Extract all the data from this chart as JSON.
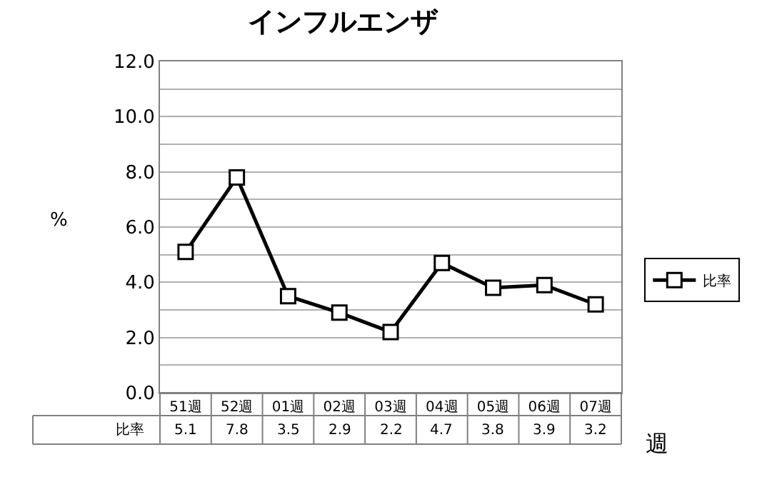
{
  "chart_data": {
    "type": "line",
    "title": "インフルエンザ",
    "ylabel": "%",
    "xlabel": "週",
    "categories": [
      "51週",
      "52週",
      "01週",
      "02週",
      "03週",
      "04週",
      "05週",
      "06週",
      "07週"
    ],
    "series": [
      {
        "name": "比率",
        "color": "#000000",
        "values": [
          5.1,
          7.8,
          3.5,
          2.9,
          2.2,
          4.7,
          3.8,
          3.9,
          3.2
        ]
      }
    ],
    "ylim": [
      0,
      12
    ],
    "yticks": [
      {
        "value": 0,
        "label": "0.0"
      },
      {
        "value": 1,
        "label": null
      },
      {
        "value": 2,
        "label": "2.0"
      },
      {
        "value": 3,
        "label": null
      },
      {
        "value": 4,
        "label": "4.0"
      },
      {
        "value": 5,
        "label": null
      },
      {
        "value": 6,
        "label": "6.0"
      },
      {
        "value": 7,
        "label": null
      },
      {
        "value": 8,
        "label": "8.0"
      },
      {
        "value": 9,
        "label": null
      },
      {
        "value": 10,
        "label": "10.0"
      },
      {
        "value": 11,
        "label": null
      },
      {
        "value": 12,
        "label": "12.0"
      }
    ],
    "grid": "y",
    "legend": "right",
    "marker": "square",
    "line_style": "solid",
    "data_labels": true
  }
}
